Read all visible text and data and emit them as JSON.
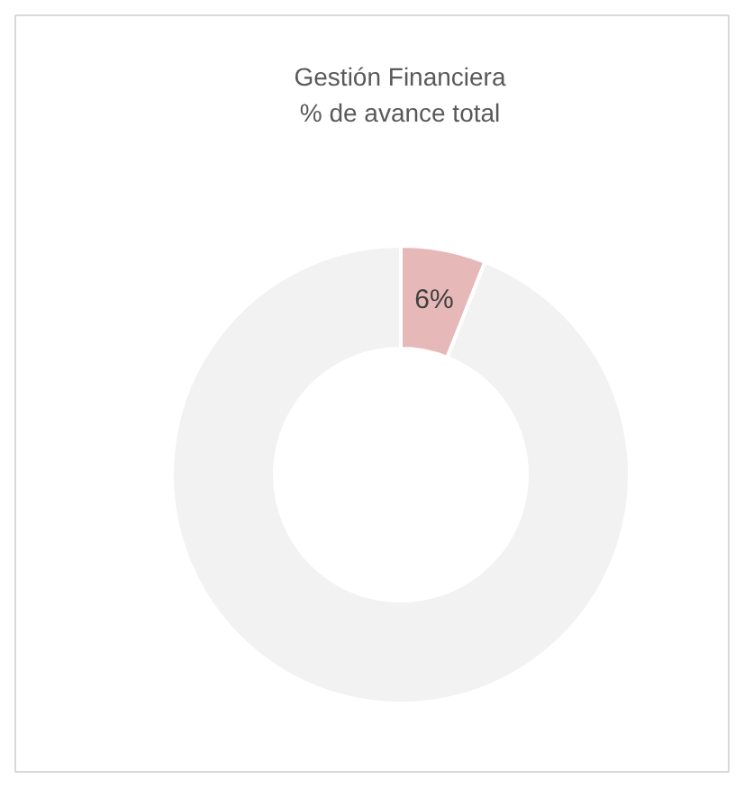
{
  "chart_data": {
    "type": "donut",
    "title": "Gestión Financiera\n% de avance total",
    "categories": [
      null,
      null
    ],
    "values": [
      6,
      94
    ],
    "colors": [
      "#e6b9b8",
      "#f2f2f2"
    ],
    "value_labels": [
      "6%",
      null
    ]
  }
}
